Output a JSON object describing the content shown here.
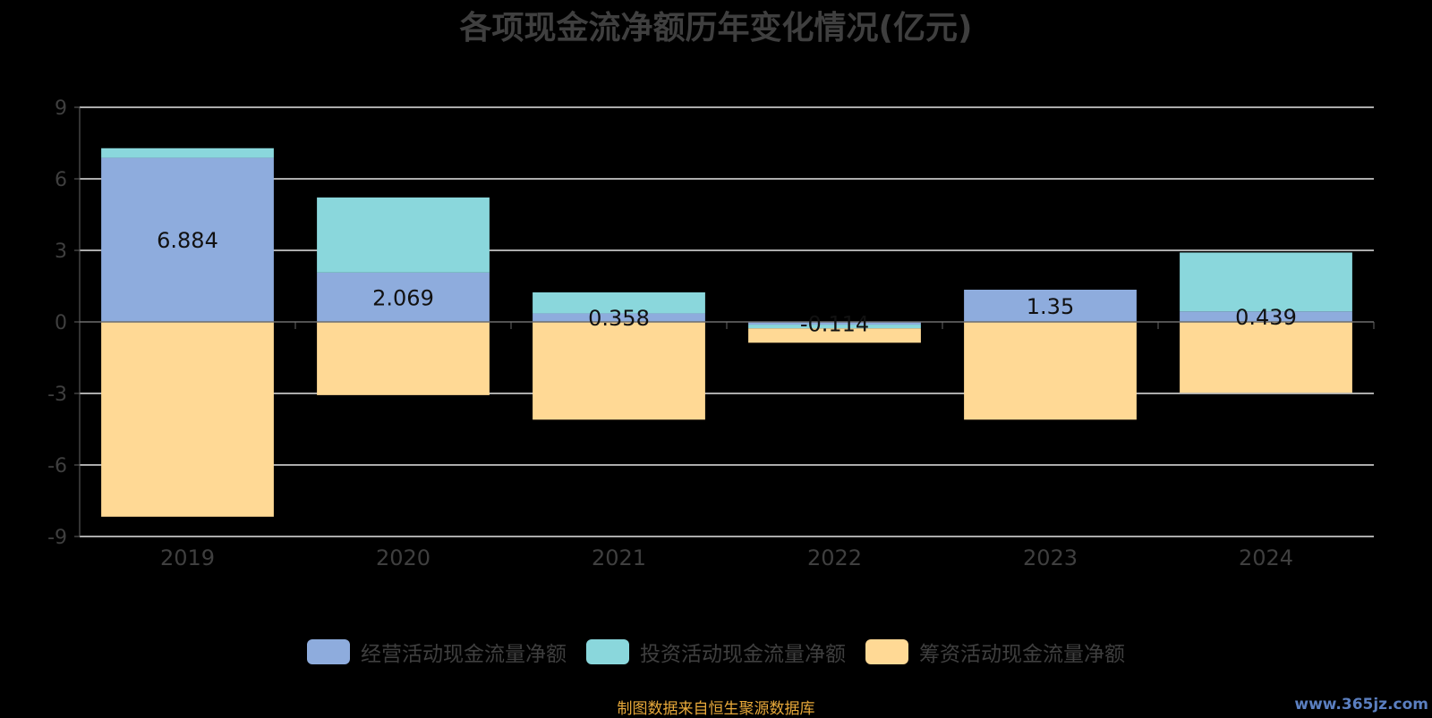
{
  "chart_data": {
    "type": "bar",
    "title": "各项现金流净额历年变化情况(亿元)",
    "categories": [
      "2019",
      "2020",
      "2021",
      "2022",
      "2023",
      "2024"
    ],
    "series": [
      {
        "name": "经营活动现金流量净额",
        "color": "#8eacdd",
        "values": [
          6.884,
          2.069,
          0.358,
          -0.114,
          1.35,
          0.439
        ],
        "labels": [
          "6.884",
          "2.069",
          "0.358",
          "-0.114",
          "1.35",
          "0.439"
        ]
      },
      {
        "name": "投资活动现金流量净额",
        "color": "#8ad7dc",
        "values": [
          0.4,
          3.15,
          0.88,
          -0.16,
          0.0,
          2.47
        ]
      },
      {
        "name": "筹资活动现金流量净额",
        "color": "#ffd995",
        "values": [
          -8.17,
          -3.07,
          -4.1,
          -0.6,
          -4.1,
          -2.97
        ]
      }
    ],
    "stacked": true,
    "ylim": [
      -9,
      9
    ],
    "yticks": [
      -9,
      -6,
      -3,
      0,
      3,
      6,
      9
    ],
    "grid": true,
    "legend_position": "bottom"
  },
  "footer": {
    "source": "制图数据来自恒生聚源数据库",
    "watermark": "www.365jz.com"
  }
}
